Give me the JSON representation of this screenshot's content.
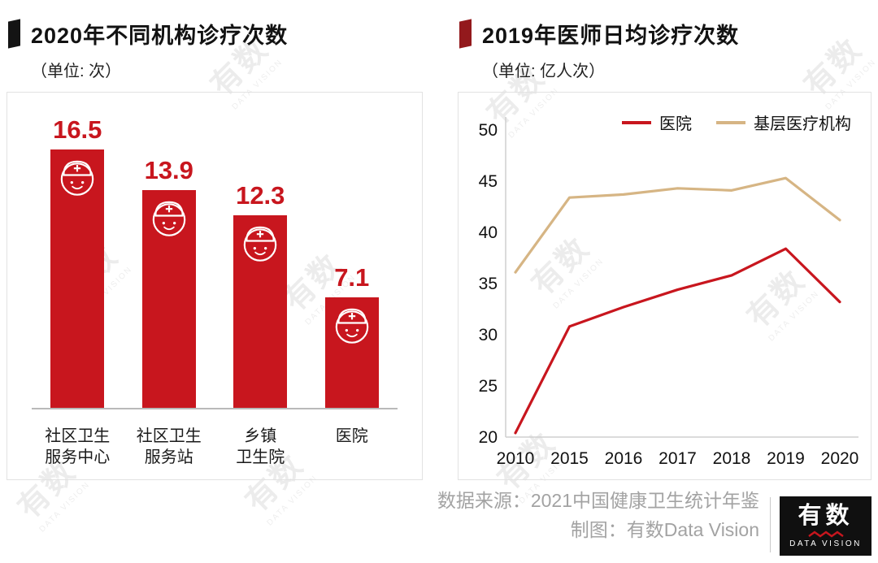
{
  "watermark": {
    "cn": "有数",
    "en": "DATA VISION"
  },
  "chart_data": [
    {
      "type": "bar",
      "title": "2020年不同机构诊疗次数",
      "unit": "次",
      "unit_label": "（单位: 次）",
      "categories": [
        "社区卫生服务中心",
        "社区卫生服务站",
        "乡镇卫生院",
        "医院"
      ],
      "categories_display": [
        [
          "社区卫生",
          "服务中心"
        ],
        [
          "社区卫生",
          "服务站"
        ],
        [
          "乡镇",
          "卫生院"
        ],
        [
          "医院"
        ]
      ],
      "values": [
        16.5,
        13.9,
        12.3,
        7.1
      ],
      "bar_color": "#c8161e",
      "value_label_color": "#c8161e",
      "ylim": [
        0,
        18
      ],
      "grid": false
    },
    {
      "type": "line",
      "title": "2019年医师日均诊疗次数",
      "unit": "亿人次",
      "unit_label": "（单位: 亿人次）",
      "x": [
        "2010",
        "2015",
        "2016",
        "2017",
        "2018",
        "2019",
        "2020"
      ],
      "series": [
        {
          "name": "医院",
          "color": "#c8161e",
          "values": [
            20.4,
            30.8,
            32.7,
            34.4,
            35.8,
            38.4,
            33.2
          ]
        },
        {
          "name": "基层医疗机构",
          "color": "#d6b584",
          "values": [
            36.1,
            43.4,
            43.7,
            44.3,
            44.1,
            45.3,
            41.2
          ]
        }
      ],
      "ylim": [
        20,
        50
      ],
      "yticks": [
        20,
        25,
        30,
        35,
        40,
        45,
        50
      ],
      "legend_position": "top-right",
      "grid": false
    }
  ],
  "footer": {
    "source": "数据来源：2021中国健康卫生统计年鉴",
    "credit": "制图：有数Data Vision",
    "logo": {
      "cn": "有数",
      "en": "DATA VISION"
    }
  }
}
